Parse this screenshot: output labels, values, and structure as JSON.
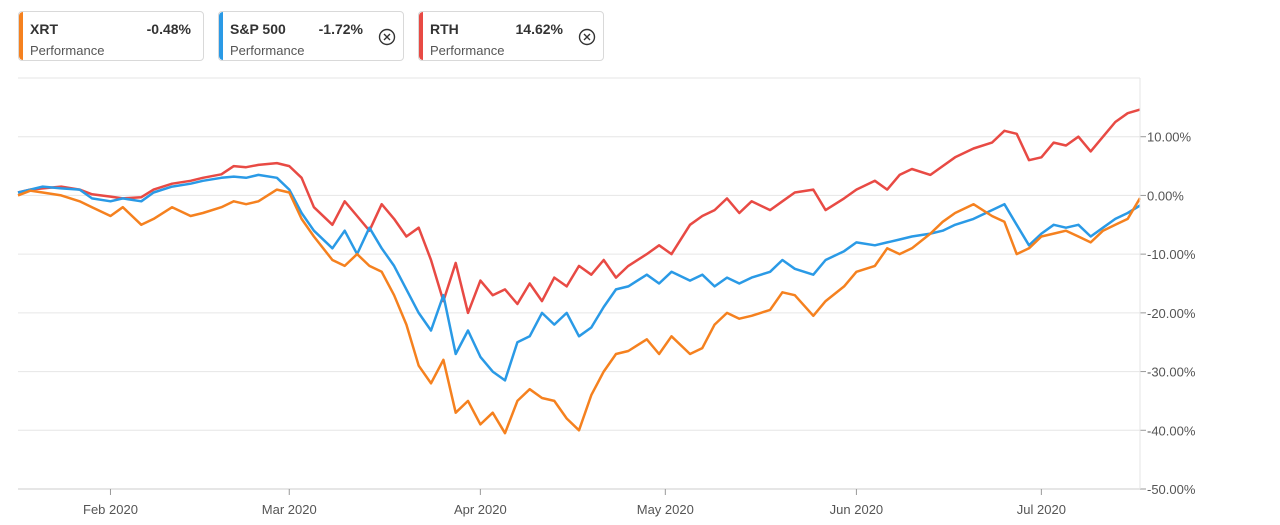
{
  "legend": [
    {
      "ticker": "XRT",
      "value": "-0.48%",
      "metric": "Performance",
      "color": "#f5811f",
      "removable": false
    },
    {
      "ticker": "S&P 500",
      "value": "-1.72%",
      "metric": "Performance",
      "color": "#2a9ae6",
      "removable": true,
      "close_icon": "close-circle-icon"
    },
    {
      "ticker": "RTH",
      "value": "14.62%",
      "metric": "Performance",
      "color": "#e84a44",
      "removable": true,
      "close_icon": "close-circle-icon"
    }
  ],
  "chart_data": {
    "type": "line",
    "x_axis": {
      "type": "date",
      "range": [
        "2020-01-17",
        "2020-07-17"
      ],
      "ticks": [
        {
          "label": "Feb 2020",
          "date": "2020-02-01"
        },
        {
          "label": "Mar 2020",
          "date": "2020-03-01"
        },
        {
          "label": "Apr 2020",
          "date": "2020-04-01"
        },
        {
          "label": "May 2020",
          "date": "2020-05-01"
        },
        {
          "label": "Jun 2020",
          "date": "2020-06-01"
        },
        {
          "label": "Jul 2020",
          "date": "2020-07-01"
        }
      ]
    },
    "y_axis": {
      "range": [
        -50,
        20
      ],
      "ticks": [
        {
          "label": "10.00%",
          "value": 10
        },
        {
          "label": "0.00%",
          "value": 0
        },
        {
          "label": "-10.00%",
          "value": -10
        },
        {
          "label": "-20.00%",
          "value": -20
        },
        {
          "label": "-30.00%",
          "value": -30
        },
        {
          "label": "-40.00%",
          "value": -40
        },
        {
          "label": "-50.00%",
          "value": -50
        }
      ],
      "grid": true
    },
    "series": [
      {
        "name": "RTH",
        "color": "#e84a44",
        "points": [
          [
            "2020-01-17",
            0.5
          ],
          [
            "2020-01-19",
            1.0
          ],
          [
            "2020-01-21",
            1.2
          ],
          [
            "2020-01-24",
            1.5
          ],
          [
            "2020-01-27",
            1.0
          ],
          [
            "2020-01-29",
            0.2
          ],
          [
            "2020-02-01",
            -0.2
          ],
          [
            "2020-02-03",
            -0.5
          ],
          [
            "2020-02-06",
            -0.3
          ],
          [
            "2020-02-08",
            1.0
          ],
          [
            "2020-02-11",
            2.0
          ],
          [
            "2020-02-14",
            2.5
          ],
          [
            "2020-02-16",
            3.0
          ],
          [
            "2020-02-19",
            3.6
          ],
          [
            "2020-02-21",
            5.0
          ],
          [
            "2020-02-23",
            4.8
          ],
          [
            "2020-02-25",
            5.2
          ],
          [
            "2020-02-28",
            5.5
          ],
          [
            "2020-03-01",
            5.0
          ],
          [
            "2020-03-03",
            3.0
          ],
          [
            "2020-03-05",
            -2.0
          ],
          [
            "2020-03-08",
            -5.0
          ],
          [
            "2020-03-10",
            -1.0
          ],
          [
            "2020-03-12",
            -3.5
          ],
          [
            "2020-03-14",
            -6.0
          ],
          [
            "2020-03-16",
            -1.5
          ],
          [
            "2020-03-18",
            -4.0
          ],
          [
            "2020-03-20",
            -7.0
          ],
          [
            "2020-03-22",
            -5.5
          ],
          [
            "2020-03-24",
            -11.0
          ],
          [
            "2020-03-26",
            -18.0
          ],
          [
            "2020-03-28",
            -11.5
          ],
          [
            "2020-03-30",
            -20.0
          ],
          [
            "2020-04-01",
            -14.5
          ],
          [
            "2020-04-03",
            -17.0
          ],
          [
            "2020-04-05",
            -16.0
          ],
          [
            "2020-04-07",
            -18.5
          ],
          [
            "2020-04-09",
            -15.0
          ],
          [
            "2020-04-11",
            -18.0
          ],
          [
            "2020-04-13",
            -14.0
          ],
          [
            "2020-04-15",
            -15.5
          ],
          [
            "2020-04-17",
            -12.0
          ],
          [
            "2020-04-19",
            -13.5
          ],
          [
            "2020-04-21",
            -11.0
          ],
          [
            "2020-04-23",
            -14.0
          ],
          [
            "2020-04-25",
            -12.0
          ],
          [
            "2020-04-28",
            -10.0
          ],
          [
            "2020-04-30",
            -8.5
          ],
          [
            "2020-05-02",
            -10.0
          ],
          [
            "2020-05-05",
            -5.0
          ],
          [
            "2020-05-07",
            -3.5
          ],
          [
            "2020-05-09",
            -2.5
          ],
          [
            "2020-05-11",
            -0.5
          ],
          [
            "2020-05-13",
            -3.0
          ],
          [
            "2020-05-15",
            -1.0
          ],
          [
            "2020-05-18",
            -2.5
          ],
          [
            "2020-05-20",
            -1.0
          ],
          [
            "2020-05-22",
            0.5
          ],
          [
            "2020-05-25",
            1.0
          ],
          [
            "2020-05-27",
            -2.5
          ],
          [
            "2020-05-30",
            -0.5
          ],
          [
            "2020-06-01",
            1.0
          ],
          [
            "2020-06-04",
            2.5
          ],
          [
            "2020-06-06",
            1.0
          ],
          [
            "2020-06-08",
            3.5
          ],
          [
            "2020-06-10",
            4.5
          ],
          [
            "2020-06-13",
            3.5
          ],
          [
            "2020-06-15",
            5.0
          ],
          [
            "2020-06-17",
            6.5
          ],
          [
            "2020-06-20",
            8.0
          ],
          [
            "2020-06-23",
            9.0
          ],
          [
            "2020-06-25",
            11.0
          ],
          [
            "2020-06-27",
            10.5
          ],
          [
            "2020-06-29",
            6.0
          ],
          [
            "2020-07-01",
            6.5
          ],
          [
            "2020-07-03",
            9.0
          ],
          [
            "2020-07-05",
            8.5
          ],
          [
            "2020-07-07",
            10.0
          ],
          [
            "2020-07-09",
            7.5
          ],
          [
            "2020-07-11",
            10.0
          ],
          [
            "2020-07-13",
            12.5
          ],
          [
            "2020-07-15",
            14.0
          ],
          [
            "2020-07-17",
            14.62
          ]
        ]
      },
      {
        "name": "S&P 500",
        "color": "#2a9ae6",
        "points": [
          [
            "2020-01-17",
            0.5
          ],
          [
            "2020-01-19",
            1.0
          ],
          [
            "2020-01-21",
            1.5
          ],
          [
            "2020-01-24",
            1.2
          ],
          [
            "2020-01-27",
            1.0
          ],
          [
            "2020-01-29",
            -0.5
          ],
          [
            "2020-02-01",
            -1.0
          ],
          [
            "2020-02-03",
            -0.5
          ],
          [
            "2020-02-06",
            -1.0
          ],
          [
            "2020-02-08",
            0.5
          ],
          [
            "2020-02-11",
            1.5
          ],
          [
            "2020-02-14",
            2.0
          ],
          [
            "2020-02-16",
            2.5
          ],
          [
            "2020-02-19",
            3.0
          ],
          [
            "2020-02-21",
            3.2
          ],
          [
            "2020-02-23",
            3.0
          ],
          [
            "2020-02-25",
            3.5
          ],
          [
            "2020-02-28",
            3.0
          ],
          [
            "2020-03-01",
            1.0
          ],
          [
            "2020-03-03",
            -3.0
          ],
          [
            "2020-03-05",
            -6.0
          ],
          [
            "2020-03-08",
            -9.0
          ],
          [
            "2020-03-10",
            -6.0
          ],
          [
            "2020-03-12",
            -10.0
          ],
          [
            "2020-03-14",
            -5.5
          ],
          [
            "2020-03-16",
            -9.0
          ],
          [
            "2020-03-18",
            -12.0
          ],
          [
            "2020-03-20",
            -16.0
          ],
          [
            "2020-03-22",
            -20.0
          ],
          [
            "2020-03-24",
            -23.0
          ],
          [
            "2020-03-26",
            -17.0
          ],
          [
            "2020-03-28",
            -27.0
          ],
          [
            "2020-03-30",
            -23.0
          ],
          [
            "2020-04-01",
            -27.5
          ],
          [
            "2020-04-03",
            -30.0
          ],
          [
            "2020-04-05",
            -31.5
          ],
          [
            "2020-04-07",
            -25.0
          ],
          [
            "2020-04-09",
            -24.0
          ],
          [
            "2020-04-11",
            -20.0
          ],
          [
            "2020-04-13",
            -22.0
          ],
          [
            "2020-04-15",
            -20.0
          ],
          [
            "2020-04-17",
            -24.0
          ],
          [
            "2020-04-19",
            -22.5
          ],
          [
            "2020-04-21",
            -19.0
          ],
          [
            "2020-04-23",
            -16.0
          ],
          [
            "2020-04-25",
            -15.5
          ],
          [
            "2020-04-28",
            -13.5
          ],
          [
            "2020-04-30",
            -15.0
          ],
          [
            "2020-05-02",
            -13.0
          ],
          [
            "2020-05-05",
            -14.5
          ],
          [
            "2020-05-07",
            -13.5
          ],
          [
            "2020-05-09",
            -15.5
          ],
          [
            "2020-05-11",
            -14.0
          ],
          [
            "2020-05-13",
            -15.0
          ],
          [
            "2020-05-15",
            -14.0
          ],
          [
            "2020-05-18",
            -13.0
          ],
          [
            "2020-05-20",
            -11.0
          ],
          [
            "2020-05-22",
            -12.5
          ],
          [
            "2020-05-25",
            -13.5
          ],
          [
            "2020-05-27",
            -11.0
          ],
          [
            "2020-05-30",
            -9.5
          ],
          [
            "2020-06-01",
            -8.0
          ],
          [
            "2020-06-04",
            -8.5
          ],
          [
            "2020-06-06",
            -8.0
          ],
          [
            "2020-06-08",
            -7.5
          ],
          [
            "2020-06-10",
            -7.0
          ],
          [
            "2020-06-13",
            -6.5
          ],
          [
            "2020-06-15",
            -6.0
          ],
          [
            "2020-06-17",
            -5.0
          ],
          [
            "2020-06-20",
            -4.0
          ],
          [
            "2020-06-23",
            -2.5
          ],
          [
            "2020-06-25",
            -1.5
          ],
          [
            "2020-06-27",
            -5.0
          ],
          [
            "2020-06-29",
            -8.5
          ],
          [
            "2020-07-01",
            -6.5
          ],
          [
            "2020-07-03",
            -5.0
          ],
          [
            "2020-07-05",
            -5.5
          ],
          [
            "2020-07-07",
            -5.0
          ],
          [
            "2020-07-09",
            -7.0
          ],
          [
            "2020-07-11",
            -5.5
          ],
          [
            "2020-07-13",
            -4.0
          ],
          [
            "2020-07-15",
            -3.0
          ],
          [
            "2020-07-17",
            -1.72
          ]
        ]
      },
      {
        "name": "XRT",
        "color": "#f5811f",
        "points": [
          [
            "2020-01-17",
            0.0
          ],
          [
            "2020-01-19",
            0.8
          ],
          [
            "2020-01-21",
            0.5
          ],
          [
            "2020-01-24",
            0.0
          ],
          [
            "2020-01-27",
            -1.0
          ],
          [
            "2020-01-29",
            -2.0
          ],
          [
            "2020-02-01",
            -3.5
          ],
          [
            "2020-02-03",
            -2.0
          ],
          [
            "2020-02-06",
            -5.0
          ],
          [
            "2020-02-08",
            -4.0
          ],
          [
            "2020-02-11",
            -2.0
          ],
          [
            "2020-02-14",
            -3.5
          ],
          [
            "2020-02-16",
            -3.0
          ],
          [
            "2020-02-19",
            -2.0
          ],
          [
            "2020-02-21",
            -1.0
          ],
          [
            "2020-02-23",
            -1.5
          ],
          [
            "2020-02-25",
            -1.0
          ],
          [
            "2020-02-28",
            1.0
          ],
          [
            "2020-03-01",
            0.5
          ],
          [
            "2020-03-03",
            -4.0
          ],
          [
            "2020-03-05",
            -7.0
          ],
          [
            "2020-03-08",
            -11.0
          ],
          [
            "2020-03-10",
            -12.0
          ],
          [
            "2020-03-12",
            -10.0
          ],
          [
            "2020-03-14",
            -12.0
          ],
          [
            "2020-03-16",
            -13.0
          ],
          [
            "2020-03-18",
            -17.0
          ],
          [
            "2020-03-20",
            -22.0
          ],
          [
            "2020-03-22",
            -29.0
          ],
          [
            "2020-03-24",
            -32.0
          ],
          [
            "2020-03-26",
            -28.0
          ],
          [
            "2020-03-28",
            -37.0
          ],
          [
            "2020-03-30",
            -35.0
          ],
          [
            "2020-04-01",
            -39.0
          ],
          [
            "2020-04-03",
            -37.0
          ],
          [
            "2020-04-05",
            -40.5
          ],
          [
            "2020-04-07",
            -35.0
          ],
          [
            "2020-04-09",
            -33.0
          ],
          [
            "2020-04-11",
            -34.5
          ],
          [
            "2020-04-13",
            -35.0
          ],
          [
            "2020-04-15",
            -38.0
          ],
          [
            "2020-04-17",
            -40.0
          ],
          [
            "2020-04-19",
            -34.0
          ],
          [
            "2020-04-21",
            -30.0
          ],
          [
            "2020-04-23",
            -27.0
          ],
          [
            "2020-04-25",
            -26.5
          ],
          [
            "2020-04-28",
            -24.5
          ],
          [
            "2020-04-30",
            -27.0
          ],
          [
            "2020-05-02",
            -24.0
          ],
          [
            "2020-05-05",
            -27.0
          ],
          [
            "2020-05-07",
            -26.0
          ],
          [
            "2020-05-09",
            -22.0
          ],
          [
            "2020-05-11",
            -20.0
          ],
          [
            "2020-05-13",
            -21.0
          ],
          [
            "2020-05-15",
            -20.5
          ],
          [
            "2020-05-18",
            -19.5
          ],
          [
            "2020-05-20",
            -16.5
          ],
          [
            "2020-05-22",
            -17.0
          ],
          [
            "2020-05-25",
            -20.5
          ],
          [
            "2020-05-27",
            -18.0
          ],
          [
            "2020-05-30",
            -15.5
          ],
          [
            "2020-06-01",
            -13.0
          ],
          [
            "2020-06-04",
            -12.0
          ],
          [
            "2020-06-06",
            -9.0
          ],
          [
            "2020-06-08",
            -10.0
          ],
          [
            "2020-06-10",
            -9.0
          ],
          [
            "2020-06-13",
            -6.5
          ],
          [
            "2020-06-15",
            -4.5
          ],
          [
            "2020-06-17",
            -3.0
          ],
          [
            "2020-06-20",
            -1.5
          ],
          [
            "2020-06-23",
            -3.5
          ],
          [
            "2020-06-25",
            -4.5
          ],
          [
            "2020-06-27",
            -10.0
          ],
          [
            "2020-06-29",
            -9.0
          ],
          [
            "2020-07-01",
            -7.0
          ],
          [
            "2020-07-03",
            -6.5
          ],
          [
            "2020-07-05",
            -6.0
          ],
          [
            "2020-07-07",
            -7.0
          ],
          [
            "2020-07-09",
            -8.0
          ],
          [
            "2020-07-11",
            -6.0
          ],
          [
            "2020-07-13",
            -5.0
          ],
          [
            "2020-07-15",
            -4.0
          ],
          [
            "2020-07-17",
            -0.48
          ]
        ]
      }
    ]
  }
}
